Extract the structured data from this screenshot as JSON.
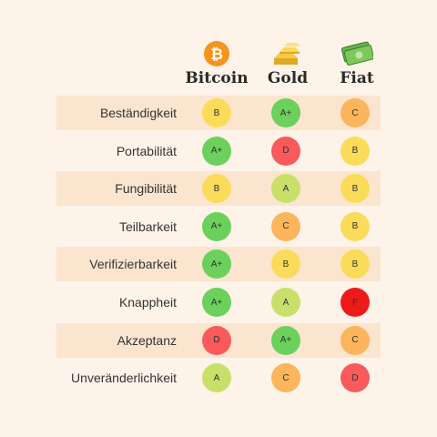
{
  "columns": [
    {
      "name": "Bitcoin",
      "icon": "bitcoin-icon"
    },
    {
      "name": "Gold",
      "icon": "gold-bars-icon"
    },
    {
      "name": "Fiat",
      "icon": "banknotes-icon"
    }
  ],
  "grade_colors": {
    "A+": "#6bd15c",
    "A": "#c8e06a",
    "B": "#fadc5a",
    "C": "#fbb55c",
    "D": "#f95a5a",
    "F": "#ee1a1a"
  },
  "rows": [
    {
      "label": "Beständigkeit",
      "grades": [
        "B",
        "A+",
        "C"
      ]
    },
    {
      "label": "Portabilität",
      "grades": [
        "A+",
        "D",
        "B"
      ]
    },
    {
      "label": "Fungibilität",
      "grades": [
        "B",
        "A",
        "B"
      ]
    },
    {
      "label": "Teilbarkeit",
      "grades": [
        "A+",
        "C",
        "B"
      ]
    },
    {
      "label": "Verifizierbarkeit",
      "grades": [
        "A+",
        "B",
        "B"
      ]
    },
    {
      "label": "Knappheit",
      "grades": [
        "A+",
        "A",
        "F"
      ]
    },
    {
      "label": "Akzeptanz",
      "grades": [
        "D",
        "A+",
        "C"
      ]
    },
    {
      "label": "Unveränderlichkeit",
      "grades": [
        "A",
        "C",
        "D"
      ]
    }
  ]
}
